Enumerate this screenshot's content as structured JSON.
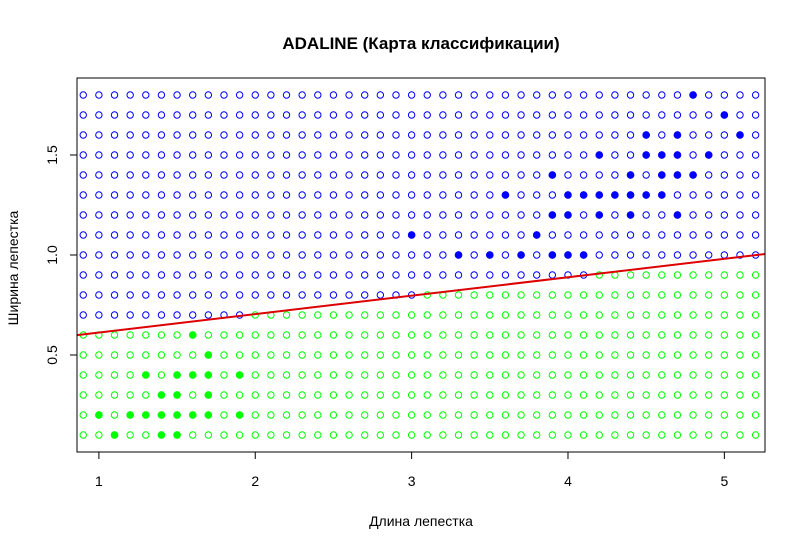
{
  "chart_data": {
    "type": "scatter",
    "title": "ADALINE (Карта классификации)",
    "xlabel": "Длина лепестка",
    "ylabel": "Ширина лепестка",
    "xlim": [
      0.86,
      5.26
    ],
    "ylim": [
      0.015,
      1.885
    ],
    "x_ticks": [
      1,
      2,
      3,
      4,
      5
    ],
    "y_ticks": [
      0.5,
      1.0,
      1.5
    ],
    "x_tick_labels": [
      "1",
      "2",
      "3",
      "4",
      "5"
    ],
    "y_tick_labels": [
      "0.5",
      "1.0",
      "1.5"
    ],
    "grid": {
      "x_start": 0.9,
      "x_end": 5.2,
      "x_step": 0.1,
      "y_start": 0.1,
      "y_end": 1.8,
      "y_step": 0.1
    },
    "grid_marker": "open-circle",
    "training_marker": "filled-circle",
    "decision_boundary": {
      "type": "line",
      "intercept": 0.52,
      "slope": 0.0922,
      "x_range": [
        0.86,
        5.26
      ],
      "color": "#dd0000"
    },
    "classes": [
      {
        "color": "#0000ff",
        "region": "above-line",
        "training_points": [
          [
            4.8,
            1.8
          ],
          [
            5.0,
            1.7
          ],
          [
            4.5,
            1.6
          ],
          [
            4.7,
            1.6
          ],
          [
            5.1,
            1.6
          ],
          [
            4.2,
            1.5
          ],
          [
            4.5,
            1.5
          ],
          [
            4.6,
            1.5
          ],
          [
            4.7,
            1.5
          ],
          [
            4.9,
            1.5
          ],
          [
            3.9,
            1.4
          ],
          [
            4.4,
            1.4
          ],
          [
            4.6,
            1.4
          ],
          [
            4.7,
            1.4
          ],
          [
            4.8,
            1.4
          ],
          [
            3.6,
            1.3
          ],
          [
            4.0,
            1.3
          ],
          [
            4.1,
            1.3
          ],
          [
            4.2,
            1.3
          ],
          [
            4.3,
            1.3
          ],
          [
            4.4,
            1.3
          ],
          [
            4.5,
            1.3
          ],
          [
            4.6,
            1.3
          ],
          [
            3.9,
            1.2
          ],
          [
            4.0,
            1.2
          ],
          [
            4.2,
            1.2
          ],
          [
            4.4,
            1.2
          ],
          [
            4.7,
            1.2
          ],
          [
            3.0,
            1.1
          ],
          [
            3.8,
            1.1
          ],
          [
            3.3,
            1.0
          ],
          [
            3.5,
            1.0
          ],
          [
            3.7,
            1.0
          ],
          [
            3.9,
            1.0
          ],
          [
            4.0,
            1.0
          ],
          [
            4.1,
            1.0
          ]
        ]
      },
      {
        "color": "#00ff00",
        "region": "below-line",
        "training_points": [
          [
            1.6,
            0.6
          ],
          [
            1.7,
            0.5
          ],
          [
            1.3,
            0.4
          ],
          [
            1.5,
            0.4
          ],
          [
            1.6,
            0.4
          ],
          [
            1.7,
            0.4
          ],
          [
            1.9,
            0.4
          ],
          [
            1.4,
            0.3
          ],
          [
            1.5,
            0.3
          ],
          [
            1.7,
            0.3
          ],
          [
            1.0,
            0.2
          ],
          [
            1.2,
            0.2
          ],
          [
            1.3,
            0.2
          ],
          [
            1.4,
            0.2
          ],
          [
            1.5,
            0.2
          ],
          [
            1.6,
            0.2
          ],
          [
            1.7,
            0.2
          ],
          [
            1.9,
            0.2
          ],
          [
            1.1,
            0.1
          ],
          [
            1.4,
            0.1
          ],
          [
            1.5,
            0.1
          ]
        ]
      }
    ]
  }
}
